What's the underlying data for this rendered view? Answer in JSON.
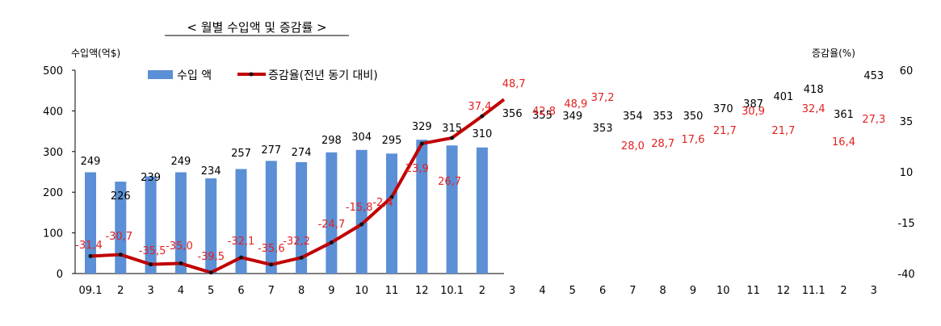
{
  "chart_data": {
    "type": "bar",
    "title": "< 월별 수입액 및 증감률 >",
    "ylabel_left": "수입액(억$)",
    "ylabel_right": "증감율(%)",
    "categories": [
      "09.1",
      "2",
      "3",
      "4",
      "5",
      "6",
      "7",
      "8",
      "9",
      "10",
      "11",
      "12",
      "10.1",
      "2",
      "3",
      "4",
      "5",
      "6",
      "7",
      "8",
      "9",
      "10",
      "11",
      "12",
      "11.1",
      "2",
      "3"
    ],
    "ylim_left": [
      0,
      500
    ],
    "yticks_left": [
      0,
      100,
      200,
      300,
      400,
      500
    ],
    "ylim_right": [
      -40,
      60
    ],
    "yticks_right": [
      -40,
      -15,
      10,
      35,
      60
    ],
    "grid": false,
    "legend_position": "top-left",
    "series": [
      {
        "name": "수입 액",
        "type": "bar",
        "axis": "left",
        "color": "#5b8fd6",
        "values": [
          249,
          226,
          239,
          249,
          234,
          257,
          277,
          274,
          298,
          304,
          295,
          329,
          315,
          310,
          356,
          355,
          349,
          353,
          354,
          353,
          350,
          370,
          387,
          401,
          418,
          361,
          453
        ],
        "labels": [
          "249",
          "226",
          "239",
          "249",
          "234",
          "257",
          "277",
          "274",
          "298",
          "304",
          "295",
          "329",
          "315",
          "310",
          "356",
          "355",
          "349",
          "353",
          "354",
          "353",
          "350",
          "370",
          "387",
          "401",
          "418",
          "361",
          "453"
        ]
      },
      {
        "name": "증감율(전년 동기 대비)",
        "type": "line",
        "axis": "right",
        "color": "#c00000",
        "values": [
          -31.4,
          -30.7,
          -35.5,
          -35.0,
          -39.5,
          -32.1,
          -35.6,
          -32.2,
          -24.7,
          -15.8,
          -2.4,
          23.9,
          26.7,
          37.4,
          48.7,
          42.8,
          48.9,
          37.2,
          28.0,
          28.7,
          17.6,
          21.7,
          30.9,
          21.7,
          32.4,
          16.4,
          27.3
        ],
        "labels": [
          "-31,4",
          "-30,7",
          "-35,5",
          "-35,0",
          "-39,5",
          "-32,1",
          "-35,6",
          "-32,2",
          "-24,7",
          "-15,8",
          "-2,4",
          "23,9",
          "26,7",
          "37,4",
          "48,7",
          "42,8",
          "48,9",
          "37,2",
          "28,0",
          "28,7",
          "17,6",
          "21,7",
          "30,9",
          "21,7",
          "32,4",
          "16,4",
          "27,3"
        ]
      }
    ]
  }
}
